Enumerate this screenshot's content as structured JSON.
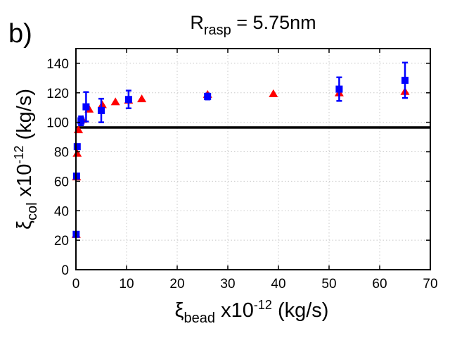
{
  "panel_label": "b)",
  "title": {
    "main": "R",
    "subscript": "rasp",
    "rest": " = 5.75nm"
  },
  "xlabel": {
    "symbol": "ξ",
    "subscript": "bead",
    "text": " x10",
    "superscript": "-12",
    "units": " (kg/s)"
  },
  "ylabel": {
    "symbol": "ξ",
    "subscript": "col",
    "text": " x10",
    "superscript": "-12",
    "units": " (kg/s)"
  },
  "chart_data": {
    "type": "scatter",
    "title": "R_rasp = 5.75nm",
    "xlabel": "ξ_bead x10^-12 (kg/s)",
    "ylabel": "ξ_col x10^-12 (kg/s)",
    "xlim": [
      0,
      70
    ],
    "ylim": [
      0,
      150
    ],
    "xticks": [
      0,
      10,
      20,
      30,
      40,
      50,
      60,
      70
    ],
    "yticks": [
      0,
      20,
      40,
      60,
      80,
      100,
      120,
      140
    ],
    "grid": true,
    "hline": {
      "y": 96.5,
      "color": "#000000"
    },
    "series": [
      {
        "name": "triangles",
        "marker": "triangle",
        "color": "#ff0000",
        "x": [
          0.05,
          0.12,
          0.25,
          0.5,
          1.3,
          2.6,
          5.2,
          7.8,
          10.4,
          13,
          26,
          39,
          52,
          65
        ],
        "y": [
          24,
          63,
          79,
          95,
          102,
          109,
          112,
          114,
          115,
          116,
          119,
          119.5,
          120,
          121
        ]
      },
      {
        "name": "squares",
        "marker": "square",
        "color": "#0000ff",
        "x": [
          0.05,
          0.12,
          0.25,
          1.0,
          2.0,
          5.0,
          10.4,
          26,
          52,
          65
        ],
        "y": [
          24,
          63.5,
          83.5,
          101,
          110.5,
          108,
          115.5,
          117.5,
          122.5,
          128.5
        ],
        "err": [
          0,
          0,
          0,
          3,
          10,
          8,
          6,
          2,
          8,
          12
        ]
      }
    ]
  }
}
